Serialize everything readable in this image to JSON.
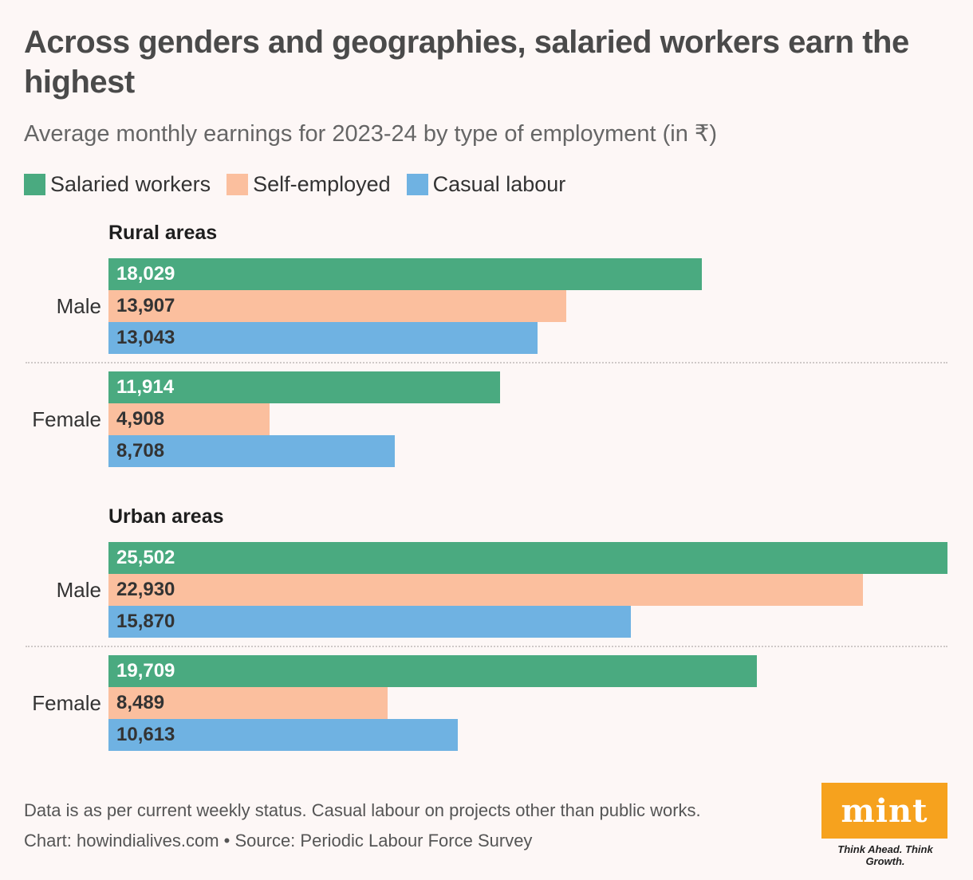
{
  "header": {
    "title": "Across genders and geographies, salaried workers earn the highest",
    "subtitle": "Average monthly earnings for 2023-24 by type of employment (in ₹)"
  },
  "legend": [
    {
      "label": "Salaried workers",
      "color": "#4aaa80"
    },
    {
      "label": "Self-employed",
      "color": "#fbbf9e"
    },
    {
      "label": "Casual labour",
      "color": "#6fb2e2"
    }
  ],
  "chart_data": {
    "type": "bar",
    "orientation": "horizontal",
    "title": "Across genders and geographies, salaried workers earn the highest",
    "subtitle": "Average monthly earnings for 2023-24 by type of employment (in ₹)",
    "xlim": [
      0,
      25502
    ],
    "grid": false,
    "legend_position": "top-left",
    "series_names": [
      "Salaried workers",
      "Self-employed",
      "Casual labour"
    ],
    "panels": [
      {
        "title": "Rural areas",
        "groups": [
          {
            "label": "Male",
            "values": [
              18029,
              13907,
              13043
            ],
            "labels": [
              "18,029",
              "13,907",
              "13,043"
            ]
          },
          {
            "label": "Female",
            "values": [
              11914,
              4908,
              8708
            ],
            "labels": [
              "11,914",
              "4,908",
              "8,708"
            ]
          }
        ]
      },
      {
        "title": "Urban areas",
        "groups": [
          {
            "label": "Male",
            "values": [
              25502,
              22930,
              15870
            ],
            "labels": [
              "25,502",
              "22,930",
              "15,870"
            ]
          },
          {
            "label": "Female",
            "values": [
              19709,
              8489,
              10613
            ],
            "labels": [
              "19,709",
              "8,489",
              "10,613"
            ]
          }
        ]
      }
    ]
  },
  "value_text_colors": [
    "#ffffff",
    "#333333",
    "#333333"
  ],
  "footer": {
    "note": "Data is as per current weekly status. Casual labour on projects other than public works.",
    "credit": "Chart: howindialives.com • Source: Periodic Labour Force Survey"
  },
  "logo": {
    "text": "mint",
    "tagline": "Think Ahead. Think Growth."
  }
}
